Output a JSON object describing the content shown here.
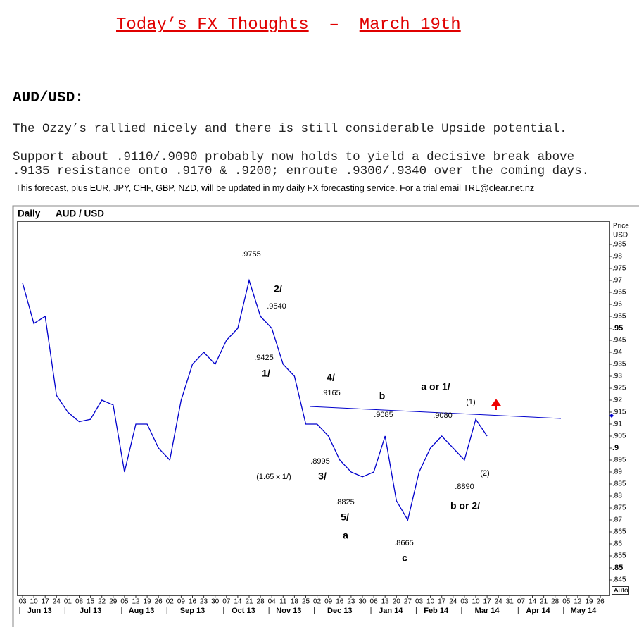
{
  "header": {
    "title": "Today’s FX Thoughts",
    "separator": "–",
    "date": "March 19th"
  },
  "section": {
    "heading": "AUD/USD:",
    "lines": [
      "The Ozzy’s rallied nicely and there is still considerable Upside potential.",
      "Support about .9110/.9090 probably now holds to yield a decisive break above",
      ".9135 resistance onto .9170 & .9200; enroute .9300/.9340 over the coming days."
    ],
    "note": "This forecast, plus EUR, JPY, CHF, GBP, NZD, will be updated in my daily FX forecasting service. For a trial email TRL@clear.net.nz"
  },
  "chart_data": {
    "type": "line",
    "title": "Daily",
    "symbol": "AUD / USD",
    "y_label": [
      "Price",
      "USD"
    ],
    "button": "Auto",
    "categories": [
      "03",
      "10",
      "17",
      "24",
      "01",
      "08",
      "15",
      "22",
      "29",
      "05",
      "12",
      "19",
      "26",
      "02",
      "09",
      "16",
      "23",
      "30",
      "07",
      "14",
      "21",
      "28",
      "04",
      "11",
      "18",
      "25",
      "02",
      "09",
      "16",
      "23",
      "30",
      "06",
      "13",
      "20",
      "27",
      "03",
      "10",
      "17",
      "24",
      "03",
      "10",
      "17",
      "24",
      "31",
      "07",
      "14",
      "21",
      "28",
      "05",
      "12",
      "19",
      "26"
    ],
    "months": [
      "Jun 13",
      "Jul 13",
      "Aug 13",
      "Sep 13",
      "Oct 13",
      "Nov 13",
      "Dec 13",
      "Jan 14",
      "Feb 14",
      "Mar 14",
      "Apr 14",
      "May 14"
    ],
    "series": [
      {
        "name": "AUD / USD",
        "color": "#0000cc",
        "values": [
          0.969,
          0.952,
          0.955,
          0.922,
          0.915,
          0.911,
          0.912,
          0.92,
          0.918,
          0.89,
          0.91,
          0.91,
          0.9,
          0.895,
          0.92,
          0.935,
          0.94,
          0.935,
          0.945,
          0.95,
          0.97,
          0.955,
          0.95,
          0.935,
          0.93,
          0.91,
          0.91,
          0.905,
          0.895,
          0.89,
          0.888,
          0.89,
          0.905,
          0.878,
          0.87,
          0.89,
          0.9,
          0.905,
          0.9,
          0.895,
          0.912,
          0.905,
          null,
          null,
          null,
          null,
          null,
          null,
          null,
          null,
          null,
          null
        ]
      }
    ],
    "ylim": [
      0.839,
      0.994
    ],
    "yticks": [
      {
        "value": 0.985,
        "label": ".985"
      },
      {
        "value": 0.98,
        "label": ".98"
      },
      {
        "value": 0.975,
        "label": ".975"
      },
      {
        "value": 0.97,
        "label": ".97"
      },
      {
        "value": 0.965,
        "label": ".965"
      },
      {
        "value": 0.96,
        "label": ".96"
      },
      {
        "value": 0.955,
        "label": ".955"
      },
      {
        "value": 0.95,
        "label": ".95"
      },
      {
        "value": 0.945,
        "label": ".945"
      },
      {
        "value": 0.94,
        "label": ".94"
      },
      {
        "value": 0.935,
        "label": ".935"
      },
      {
        "value": 0.93,
        "label": ".93"
      },
      {
        "value": 0.925,
        "label": ".925"
      },
      {
        "value": 0.92,
        "label": ".92"
      },
      {
        "value": 0.915,
        "label": ".915"
      },
      {
        "value": 0.91,
        "label": ".91"
      },
      {
        "value": 0.905,
        "label": ".905"
      },
      {
        "value": 0.9,
        "label": ".9"
      },
      {
        "value": 0.895,
        "label": ".895"
      },
      {
        "value": 0.89,
        "label": ".89"
      },
      {
        "value": 0.885,
        "label": ".885"
      },
      {
        "value": 0.88,
        "label": ".88"
      },
      {
        "value": 0.875,
        "label": ".875"
      },
      {
        "value": 0.87,
        "label": ".87"
      },
      {
        "value": 0.865,
        "label": ".865"
      },
      {
        "value": 0.86,
        "label": ".86"
      },
      {
        "value": 0.855,
        "label": ".855"
      },
      {
        "value": 0.85,
        "label": ".85"
      },
      {
        "value": 0.845,
        "label": ".845"
      }
    ],
    "annotations": [
      ".9755",
      "2/",
      ".9540",
      ".9425",
      "1/",
      "4/",
      ".9165",
      "b",
      ".9085",
      "a or 1/",
      ".9080",
      "(1)",
      "(1.65 x 1/)",
      ".8995",
      "3/",
      ".8825",
      "5/",
      "a",
      ".8665",
      "c",
      ".8890",
      "(2)",
      "b or 2/"
    ]
  }
}
